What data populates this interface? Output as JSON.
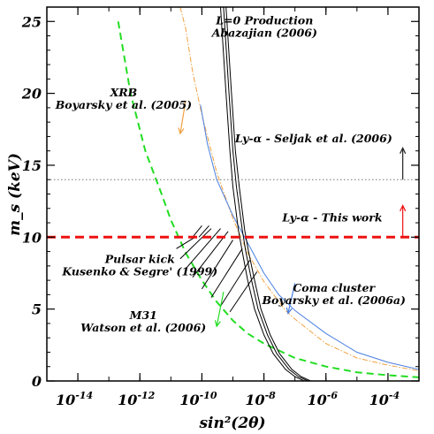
{
  "chart_data": {
    "type": "line",
    "xlabel": "sin²(2θ)",
    "ylabel": "m_s (keV)",
    "x_scale": "log",
    "xlim": [
      1e-15,
      0.001
    ],
    "ylim": [
      0,
      26
    ],
    "x_ticks": [
      {
        "value": 1e-14,
        "base": "10",
        "exp": "-14"
      },
      {
        "value": 1e-12,
        "base": "10",
        "exp": "-12"
      },
      {
        "value": 1e-10,
        "base": "10",
        "exp": "-10"
      },
      {
        "value": 1e-08,
        "base": "10",
        "exp": "-8"
      },
      {
        "value": 1e-06,
        "base": "10",
        "exp": "-6"
      },
      {
        "value": 0.0001,
        "base": "10",
        "exp": "-4"
      }
    ],
    "y_ticks": [
      0,
      5,
      10,
      15,
      20,
      25
    ],
    "grid": false,
    "series": [
      {
        "key": "m31",
        "color": "#22dd22",
        "dash": "8,5",
        "width": 2,
        "points": [
          [
            2e-13,
            25
          ],
          [
            5e-13,
            20
          ],
          [
            1.5e-12,
            16
          ],
          [
            5e-12,
            13
          ],
          [
            1e-11,
            11.2
          ],
          [
            3e-11,
            8.9
          ],
          [
            1e-10,
            7
          ],
          [
            3e-10,
            5.5
          ],
          [
            1e-09,
            4.2
          ],
          [
            3e-09,
            3.3
          ],
          [
            1e-08,
            2.6
          ],
          [
            1e-07,
            1.6
          ],
          [
            1e-06,
            1
          ],
          [
            1e-05,
            0.6
          ],
          [
            0.0001,
            0.4
          ],
          [
            0.001,
            0.25
          ]
        ]
      },
      {
        "key": "xrb",
        "color": "#f0a040",
        "dash": "6,2,1.5,2",
        "width": 1,
        "points": [
          [
            2e-11,
            26
          ],
          [
            3e-11,
            24.5
          ],
          [
            5e-11,
            21.5
          ],
          [
            1e-10,
            18.5
          ],
          [
            3e-10,
            14.5
          ],
          [
            1e-09,
            11.3
          ],
          [
            3e-09,
            8.9
          ],
          [
            1e-08,
            6.9
          ],
          [
            5e-08,
            4.9
          ],
          [
            1e-07,
            4.3
          ],
          [
            1e-06,
            2.6
          ],
          [
            1e-05,
            1.6
          ],
          [
            0.0001,
            1.1
          ],
          [
            0.001,
            0.7
          ]
        ]
      },
      {
        "key": "seljak_curve",
        "color": "#4a7fe0",
        "dash": "",
        "width": 1,
        "points": [
          [
            9e-11,
            19.2
          ],
          [
            1.5e-10,
            16.5
          ],
          [
            3e-10,
            14
          ],
          [
            1e-09,
            11.5
          ],
          [
            3e-09,
            9.6
          ],
          [
            1e-08,
            7.5
          ],
          [
            3e-08,
            6
          ],
          [
            1e-07,
            4.9
          ],
          [
            1e-06,
            3.3
          ],
          [
            1e-05,
            2
          ],
          [
            0.0001,
            1.3
          ],
          [
            0.001,
            0.8
          ]
        ]
      },
      {
        "key": "production_1",
        "color": "#000000",
        "dash": "",
        "width": 1,
        "points": [
          [
            4e-10,
            26
          ],
          [
            6e-10,
            20
          ],
          [
            8e-10,
            16
          ],
          [
            1e-09,
            13.5
          ],
          [
            1.5e-09,
            10.5
          ],
          [
            2e-09,
            9
          ],
          [
            3e-09,
            7
          ],
          [
            5e-09,
            5
          ],
          [
            1e-08,
            3.2
          ],
          [
            2e-08,
            1.9
          ],
          [
            5e-08,
            0.8
          ],
          [
            1e-07,
            0.3
          ],
          [
            2e-07,
            0
          ]
        ]
      },
      {
        "key": "production_2",
        "color": "#000000",
        "dash": "",
        "width": 1,
        "points": [
          [
            5e-10,
            26
          ],
          [
            7.5e-10,
            20
          ],
          [
            1e-09,
            16
          ],
          [
            1.3e-09,
            13.5
          ],
          [
            2e-09,
            10.5
          ],
          [
            2.6e-09,
            9
          ],
          [
            4e-09,
            7
          ],
          [
            6.5e-09,
            5
          ],
          [
            1.3e-08,
            3.2
          ],
          [
            2.6e-08,
            1.9
          ],
          [
            6.5e-08,
            0.8
          ],
          [
            1.3e-07,
            0.3
          ],
          [
            2.6e-07,
            0
          ]
        ]
      },
      {
        "key": "production_3",
        "color": "#000000",
        "dash": "",
        "width": 1,
        "points": [
          [
            6e-10,
            26
          ],
          [
            9e-10,
            20
          ],
          [
            1.2e-09,
            16
          ],
          [
            1.6e-09,
            13.5
          ],
          [
            2.4e-09,
            10.5
          ],
          [
            3.2e-09,
            9
          ],
          [
            5e-09,
            7
          ],
          [
            8e-09,
            5
          ],
          [
            1.6e-08,
            3.2
          ],
          [
            3.2e-08,
            1.9
          ],
          [
            8e-08,
            0.8
          ],
          [
            1.6e-07,
            0.3
          ],
          [
            3.2e-07,
            0
          ]
        ]
      }
    ],
    "hlines": [
      {
        "key": "this_work",
        "y": 10,
        "color": "#ee1111",
        "dash": "10,6",
        "width": 3
      },
      {
        "key": "seljak_line",
        "y": 14,
        "color": "#777777",
        "dash": "1.5,2.5",
        "width": 1
      }
    ],
    "arrows": [
      {
        "key": "arrow-this-work",
        "x": 0.0003,
        "y1": 10,
        "y2": 12.2,
        "color": "#ee1111"
      },
      {
        "key": "arrow-seljak",
        "x": 0.0003,
        "y1": 14,
        "y2": 16.2,
        "color": "#222222"
      },
      {
        "key": "arrow-xrb",
        "x": 3e-11,
        "y1": 19.5,
        "y2": 17.2,
        "x2": 2e-11,
        "color": "#f0a040"
      },
      {
        "key": "arrow-coma",
        "x": 1e-07,
        "y1": 6.8,
        "y2": 4.7,
        "x2": 6e-08,
        "color": "#4a7fe0"
      },
      {
        "key": "arrow-m31",
        "x": 5e-10,
        "y1": 6.2,
        "y2": 3.8,
        "x2": 3e-10,
        "color": "#22dd22"
      }
    ],
    "hatch": [
      [
        [
          5e-11,
          10
        ],
        [
          1e-10,
          10.8
        ]
      ],
      [
        [
          8e-11,
          10
        ],
        [
          1.7e-10,
          10.8
        ]
      ],
      [
        [
          1.5e-11,
          9.2
        ],
        [
          6e-11,
          10
        ]
      ],
      [
        [
          2e-11,
          8.5
        ],
        [
          2e-10,
          10.6
        ]
      ],
      [
        [
          3e-11,
          7.8
        ],
        [
          4e-10,
          10.6
        ]
      ],
      [
        [
          5e-11,
          7.2
        ],
        [
          7e-10,
          10.4
        ]
      ],
      [
        [
          1e-10,
          6.4
        ],
        [
          1e-09,
          9.8
        ]
      ],
      [
        [
          2e-10,
          5.8
        ],
        [
          2e-09,
          9.2
        ]
      ],
      [
        [
          4e-10,
          5.2
        ],
        [
          3.5e-09,
          8.4
        ]
      ],
      [
        [
          8e-10,
          4.8
        ],
        [
          6e-09,
          7.6
        ]
      ]
    ],
    "annotations": [
      {
        "key": "production",
        "lines": [
          "L=0 Production",
          "Abazajian (2006)"
        ],
        "x": 1.05e-08,
        "y": 24.8
      },
      {
        "key": "xrb",
        "lines": [
          "XRB",
          "Boyarsky et al. (2005)"
        ],
        "x": 3e-13,
        "y": 19.8
      },
      {
        "key": "seljak",
        "lines": [
          "Ly-α - Seljak et al. (2006)"
        ],
        "x": 4e-07,
        "y": 16.6
      },
      {
        "key": "this_work",
        "lines": [
          "Ly-α - This work"
        ],
        "x": 1.6e-06,
        "y": 11.1
      },
      {
        "key": "pulsar",
        "lines": [
          "Pulsar kick",
          "Kusenko & Segre' (1999)"
        ],
        "x": 1e-12,
        "y": 8.2
      },
      {
        "key": "coma",
        "lines": [
          "Coma cluster",
          "Boyarsky et al. (2006a)"
        ],
        "x": 1.8e-06,
        "y": 6.2
      },
      {
        "key": "m31",
        "lines": [
          "M31",
          "Watson et al. (2006)"
        ],
        "x": 1.3e-12,
        "y": 4.3
      }
    ]
  }
}
